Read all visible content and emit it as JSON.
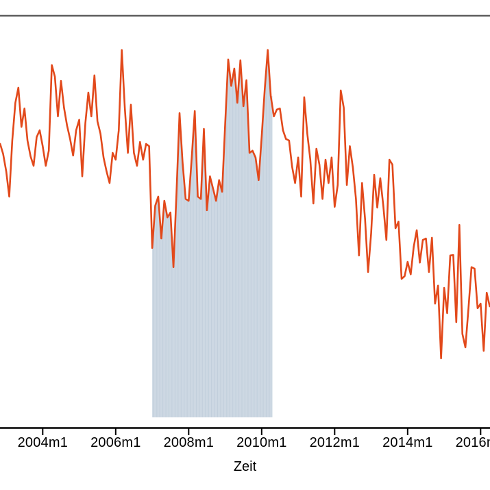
{
  "chart_data": {
    "type": "line",
    "title": "",
    "xlabel": "Zeit",
    "ylabel": "",
    "y_axis_visible": false,
    "value_scale": "relative index 0-100 (no y-axis labels visible in screenshot)",
    "frequency": "monthly",
    "start_month": "2002m11",
    "end_month": "2016m4",
    "x_ticks": [
      {
        "label": "2004m1",
        "month_index": 14
      },
      {
        "label": "2006m1",
        "month_index": 38
      },
      {
        "label": "2008m1",
        "month_index": 62
      },
      {
        "label": "2010m1",
        "month_index": 86
      },
      {
        "label": "2012m1",
        "month_index": 110
      },
      {
        "label": "2014m1",
        "month_index": 134
      },
      {
        "label": "2016m1",
        "month_index": 158
      }
    ],
    "series": [
      {
        "name": "monthly-series",
        "color": "#e2491b",
        "values": [
          75.1,
          72.4,
          67.8,
          61.1,
          76,
          86,
          90,
          79.6,
          84.5,
          76,
          71.8,
          69.3,
          76.9,
          78.7,
          74.5,
          69.3,
          73.3,
          96,
          92.9,
          82.4,
          91.8,
          84.7,
          80,
          76.4,
          72,
          78.7,
          81.5,
          66.5,
          80.5,
          88.7,
          82.4,
          93.3,
          81.1,
          77.8,
          71.5,
          67.8,
          64.7,
          72.7,
          70.9,
          78.7,
          100,
          84.7,
          72.7,
          85.5,
          72.7,
          69.3,
          75.6,
          70.9,
          75.1,
          74.5,
          47.5,
          58.7,
          61.1,
          50,
          60,
          55.6,
          56.9,
          42.4,
          62.4,
          83.3,
          70.2,
          60.5,
          60,
          71.5,
          83.8,
          61.1,
          60.5,
          79.1,
          57.5,
          66.5,
          63.3,
          60,
          65.5,
          62.4,
          80.5,
          97.5,
          90.5,
          95.1,
          86,
          97.3,
          85.1,
          92,
          72.7,
          73.3,
          71.5,
          65.5,
          76.9,
          89.6,
          100,
          87.8,
          82.4,
          84.2,
          84.5,
          78.7,
          76.4,
          76,
          69.1,
          64.7,
          71.5,
          61.1,
          87.5,
          77.8,
          70.9,
          59.3,
          73.8,
          69.6,
          60.5,
          70.9,
          64.7,
          71.5,
          58.4,
          64.2,
          89.3,
          84.7,
          64.2,
          74.5,
          68.7,
          60.5,
          45.5,
          64.7,
          55.1,
          41.1,
          51.5,
          66.9,
          58.2,
          66,
          58.7,
          49.6,
          70.9,
          69.6,
          52.7,
          54.5,
          39.3,
          40,
          43.8,
          40.5,
          47.8,
          52.2,
          43.6,
          49.6,
          50,
          41.1,
          50.2,
          32.7,
          37.5,
          18.2,
          36.9,
          30.2,
          45.5,
          45.6,
          27.8,
          53.6,
          24.7,
          21.1,
          31.5,
          42.4,
          42,
          31.5,
          32.7,
          20.2,
          35.6,
          32
        ]
      }
    ],
    "shaded_region": {
      "from": "2007m1",
      "to": "2010m4",
      "start_index": 50,
      "end_index": 89,
      "style": "area under curve filled with monthly vertical bars",
      "fill": "#cdd8e3",
      "stripe": "#c2cfdc"
    },
    "legend": null,
    "grid": false
  },
  "colors": {
    "line": "#e2491b",
    "axis": "#000000",
    "top_rule": "#5e5e5e",
    "shade_fill": "#cdd8e3",
    "shade_stripe": "#c2cfdc",
    "text": "#000000",
    "background": "#ffffff"
  }
}
